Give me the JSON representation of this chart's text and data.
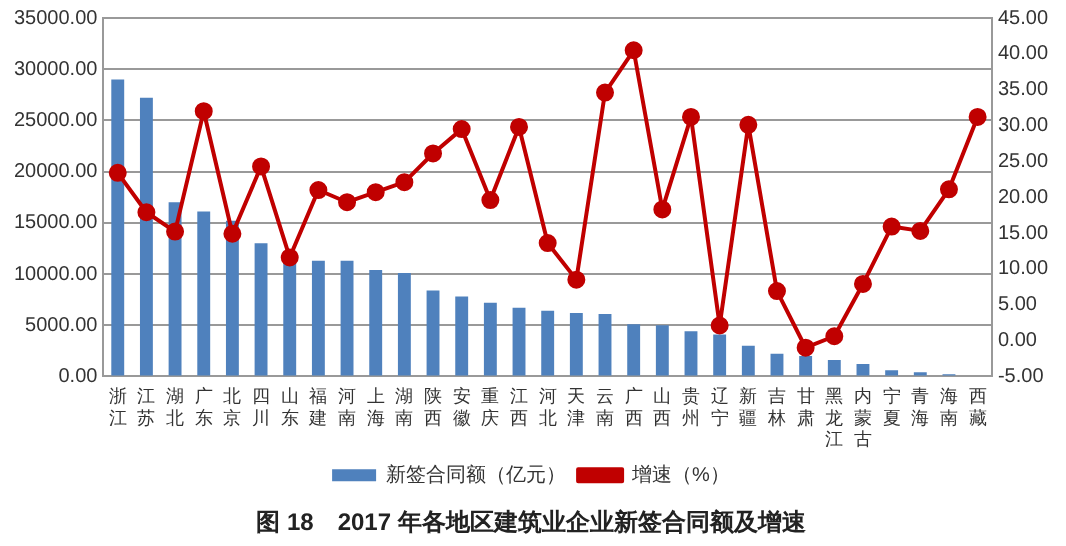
{
  "chart_data": {
    "type": "bar",
    "title": "图 18　2017 年各地区建筑业企业新签合同额及增速",
    "categories": [
      "浙江",
      "江苏",
      "湖北",
      "广东",
      "北京",
      "四川",
      "山东",
      "福建",
      "河南",
      "上海",
      "湖南",
      "陕西",
      "安徽",
      "重庆",
      "江西",
      "河北",
      "天津",
      "云南",
      "广西",
      "山西",
      "贵州",
      "辽宁",
      "新疆",
      "吉林",
      "甘肃",
      "黑龙江",
      "内蒙古",
      "宁夏",
      "青海",
      "海南",
      "西藏"
    ],
    "series": [
      {
        "name": "新签合同额（亿元）",
        "color": "#4f81bd",
        "values": [
          29000,
          27200,
          17000,
          16100,
          15200,
          13000,
          11500,
          11300,
          11300,
          10400,
          10100,
          8400,
          7800,
          7200,
          6700,
          6400,
          6200,
          6100,
          5100,
          5000,
          4400,
          4100,
          3000,
          2200,
          2000,
          1600,
          1200,
          600,
          400,
          200,
          100
        ]
      },
      {
        "name": "增速（%）",
        "type": "line",
        "axis": "y2",
        "color": "#c00000",
        "values": [
          23.4,
          17.9,
          15.2,
          32.0,
          14.9,
          24.3,
          11.6,
          21.0,
          19.3,
          20.7,
          22.1,
          26.1,
          29.5,
          19.6,
          29.8,
          13.6,
          8.5,
          34.6,
          40.5,
          18.3,
          31.2,
          2.1,
          30.1,
          6.9,
          -1.0,
          0.6,
          7.9,
          15.9,
          15.3,
          21.1,
          31.2
        ]
      }
    ],
    "ylim": [
      0,
      35000
    ],
    "yticks": [
      {
        "value": 0,
        "label": "0.00"
      },
      {
        "value": 5000,
        "label": "5000.00"
      },
      {
        "value": 10000,
        "label": "10000.00"
      },
      {
        "value": 15000,
        "label": "15000.00"
      },
      {
        "value": 20000,
        "label": "20000.00"
      },
      {
        "value": 25000,
        "label": "25000.00"
      },
      {
        "value": 30000,
        "label": "30000.00"
      },
      {
        "value": 35000,
        "label": "35000.00"
      }
    ],
    "y2lim": [
      -5,
      45
    ],
    "y2ticks": [
      {
        "value": -5,
        "label": "-5.00"
      },
      {
        "value": 0,
        "label": "0.00"
      },
      {
        "value": 5,
        "label": "5.00"
      },
      {
        "value": 10,
        "label": "10.00"
      },
      {
        "value": 15,
        "label": "15.00"
      },
      {
        "value": 20,
        "label": "20.00"
      },
      {
        "value": 25,
        "label": "25.00"
      },
      {
        "value": 30,
        "label": "30.00"
      },
      {
        "value": 35,
        "label": "35.00"
      },
      {
        "value": 40,
        "label": "40.00"
      },
      {
        "value": 45,
        "label": "45.00"
      }
    ],
    "grid": "y",
    "legend": "bottom",
    "marker": "circle",
    "line_style": "solid"
  }
}
